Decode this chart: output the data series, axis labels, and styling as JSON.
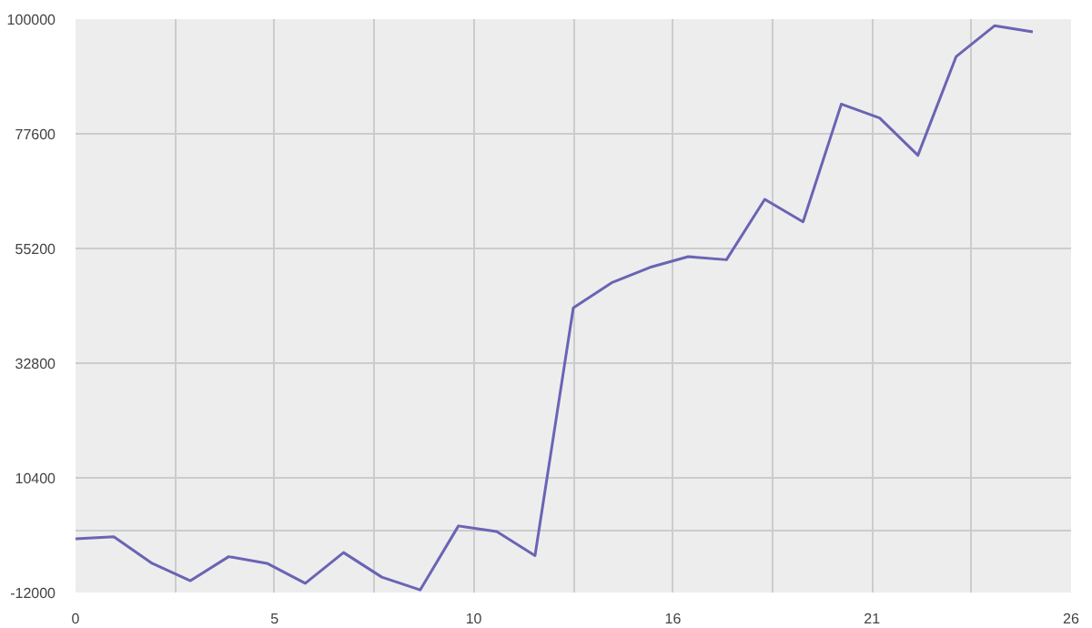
{
  "chart_data": {
    "type": "line",
    "x": [
      0,
      1,
      2,
      3,
      4,
      5,
      6,
      7,
      8,
      9,
      10,
      11,
      12,
      13,
      14,
      15,
      16,
      17,
      18,
      19,
      20,
      21,
      22,
      23,
      24,
      25
    ],
    "series": [
      {
        "color": "#6a64b4",
        "values": [
          -1500,
          -1100,
          -6300,
          -9700,
          -5000,
          -6300,
          -10200,
          -4200,
          -9000,
          -11500,
          1000,
          -100,
          -4800,
          43600,
          48500,
          51500,
          53600,
          53000,
          64800,
          60400,
          83400,
          80700,
          73400,
          92700,
          98700,
          97500
        ]
      }
    ],
    "xlim": [
      0,
      26
    ],
    "xticks": [
      0,
      {
        "value": 2.6,
        "label": null
      },
      {
        "value": 5.2,
        "label": "5"
      },
      {
        "value": 7.8,
        "label": null
      },
      {
        "value": 10.4,
        "label": "10"
      },
      {
        "value": 13,
        "label": null
      },
      {
        "value": 15.6,
        "label": "16"
      },
      {
        "value": 18.2,
        "label": null
      },
      {
        "value": 20.8,
        "label": "21"
      },
      {
        "value": 23.4,
        "label": null
      },
      26
    ],
    "ylim": [
      -12000,
      100000
    ],
    "yticks": [
      -12000,
      {
        "value": 0,
        "label": null
      },
      10400,
      32800,
      55200,
      77600,
      100000
    ],
    "grid": true,
    "marker": "none",
    "line_style": "solid"
  }
}
